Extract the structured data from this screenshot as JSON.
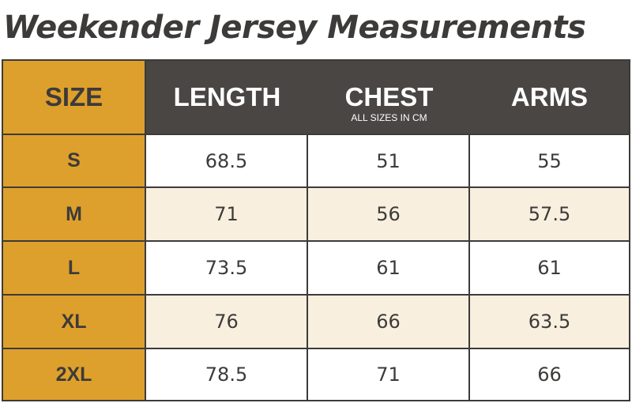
{
  "title": "Weekender Jersey Measurements",
  "table": {
    "headers": {
      "size": "SIZE",
      "length": "LENGTH",
      "chest": "CHEST",
      "chest_note": "ALL SIZES IN CM",
      "arms": "ARMS"
    },
    "rows": [
      {
        "size": "S",
        "length": "68.5",
        "chest": "51",
        "arms": "55"
      },
      {
        "size": "M",
        "length": "71",
        "chest": "56",
        "arms": "57.5"
      },
      {
        "size": "L",
        "length": "73.5",
        "chest": "61",
        "arms": "61"
      },
      {
        "size": "XL",
        "length": "76",
        "chest": "66",
        "arms": "63.5"
      },
      {
        "size": "2XL",
        "length": "78.5",
        "chest": "71",
        "arms": "66"
      }
    ]
  },
  "colors": {
    "accent": "#dea02c",
    "header_bg": "#494644",
    "text_dark": "#3d3b39",
    "row_alt": "#f8efdf",
    "row_base": "#ffffff"
  }
}
